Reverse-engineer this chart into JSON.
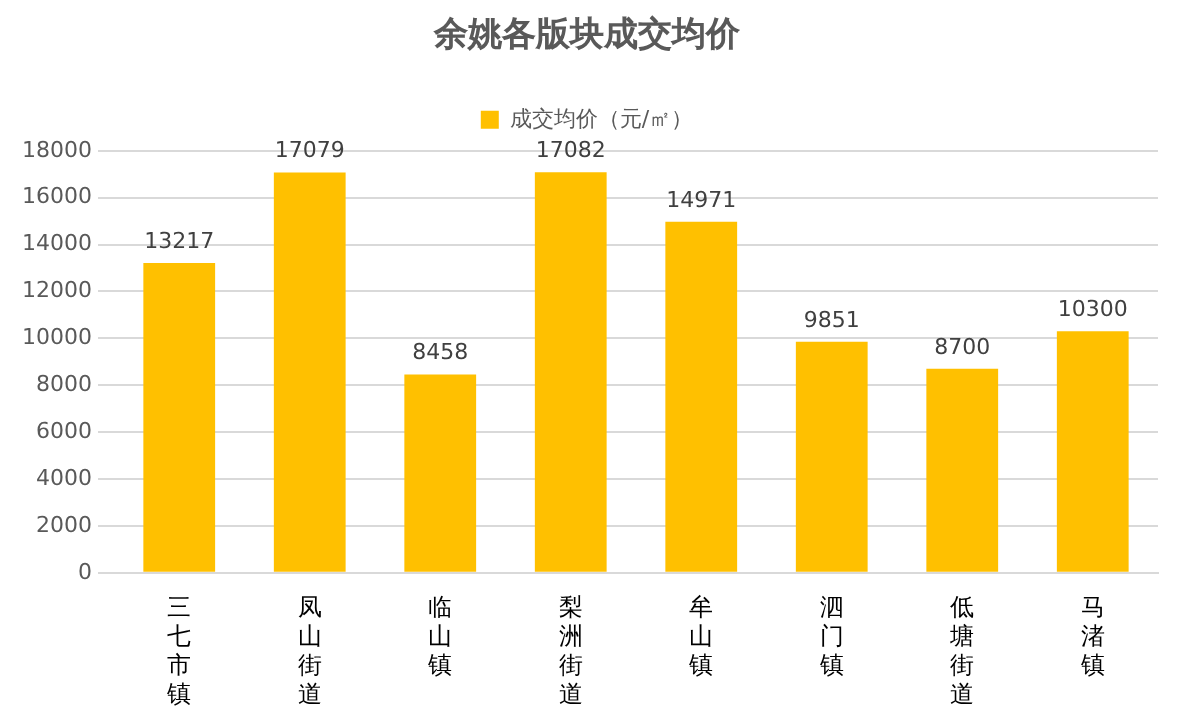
{
  "chart_data": {
    "type": "bar",
    "title": "余姚各版块成交均价",
    "categories": [
      "三七市镇",
      "凤山街道",
      "临山镇",
      "梨洲街道",
      "牟山镇",
      "泗门镇",
      "低塘街道",
      "马渚镇"
    ],
    "series": [
      {
        "name": "成交均价（元/㎡）",
        "color": "#ffc000",
        "values": [
          13217,
          17079,
          8458,
          17082,
          14971,
          9851,
          8700,
          10300
        ]
      }
    ],
    "ylim": [
      0,
      18000
    ],
    "yticks": [
      0,
      2000,
      4000,
      6000,
      8000,
      10000,
      12000,
      14000,
      16000,
      18000
    ],
    "grid": "y",
    "legend": "top",
    "data_labels": true
  }
}
